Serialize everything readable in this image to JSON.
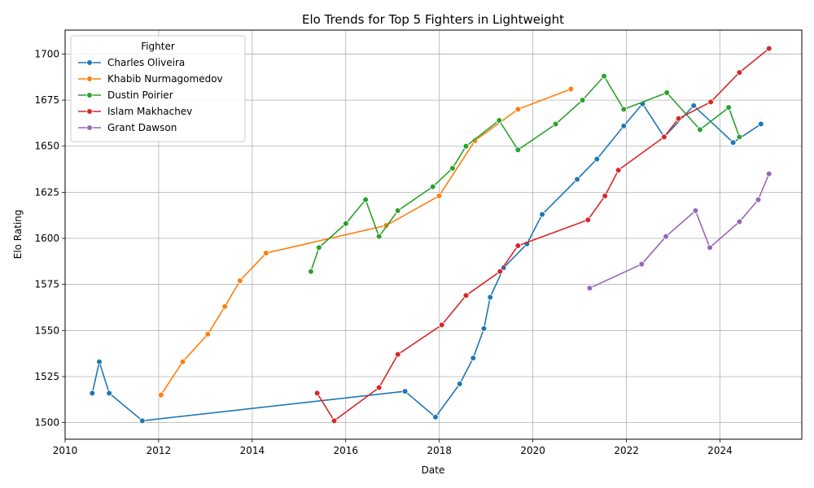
{
  "chart_data": {
    "type": "line",
    "title": "Elo Trends for Top 5 Fighters in Lightweight",
    "xlabel": "Date",
    "ylabel": "Elo Rating",
    "xlim": [
      "2010-01-01",
      "2025-10-01"
    ],
    "ylim": [
      1491,
      1713
    ],
    "xticks": [
      "2010",
      "2012",
      "2014",
      "2016",
      "2018",
      "2020",
      "2022",
      "2024"
    ],
    "yticks": [
      1500,
      1525,
      1550,
      1575,
      1600,
      1625,
      1650,
      1675,
      1700
    ],
    "grid": true,
    "legend": {
      "title": "Fighter",
      "position": "top-left"
    },
    "series": [
      {
        "name": "Charles Oliveira",
        "color": "#1f77b4",
        "points": [
          [
            "2010-08-01",
            1516
          ],
          [
            "2010-09-25",
            1533
          ],
          [
            "2010-12-11",
            1516
          ],
          [
            "2011-08-27",
            1501
          ],
          [
            "2017-04-08",
            1517
          ],
          [
            "2017-12-02",
            1503
          ],
          [
            "2018-06-09",
            1521
          ],
          [
            "2018-09-22",
            1535
          ],
          [
            "2018-12-15",
            1551
          ],
          [
            "2019-02-02",
            1568
          ],
          [
            "2019-05-18",
            1584
          ],
          [
            "2019-11-16",
            1597
          ],
          [
            "2020-03-14",
            1613
          ],
          [
            "2020-12-12",
            1632
          ],
          [
            "2021-05-15",
            1643
          ],
          [
            "2021-12-11",
            1661
          ],
          [
            "2022-05-07",
            1673
          ],
          [
            "2022-10-22",
            1655
          ],
          [
            "2023-06-10",
            1672
          ],
          [
            "2024-04-13",
            1652
          ],
          [
            "2024-11-16",
            1662
          ]
        ]
      },
      {
        "name": "Khabib Nurmagomedov",
        "color": "#ff7f0e",
        "points": [
          [
            "2012-01-20",
            1515
          ],
          [
            "2012-07-07",
            1533
          ],
          [
            "2013-01-19",
            1548
          ],
          [
            "2013-06-01",
            1563
          ],
          [
            "2013-09-28",
            1577
          ],
          [
            "2014-04-19",
            1592
          ],
          [
            "2016-11-12",
            1607
          ],
          [
            "2017-12-30",
            1623
          ],
          [
            "2018-10-06",
            1653
          ],
          [
            "2019-09-07",
            1670
          ],
          [
            "2020-10-24",
            1681
          ]
        ]
      },
      {
        "name": "Dustin Poirier",
        "color": "#2ca02c",
        "points": [
          [
            "2015-04-04",
            1582
          ],
          [
            "2015-06-06",
            1595
          ],
          [
            "2016-01-02",
            1608
          ],
          [
            "2016-06-04",
            1621
          ],
          [
            "2016-09-17",
            1601
          ],
          [
            "2017-02-11",
            1615
          ],
          [
            "2017-11-11",
            1628
          ],
          [
            "2018-04-14",
            1638
          ],
          [
            "2018-07-28",
            1650
          ],
          [
            "2019-04-13",
            1664
          ],
          [
            "2019-09-07",
            1648
          ],
          [
            "2020-06-27",
            1662
          ],
          [
            "2021-01-23",
            1675
          ],
          [
            "2021-07-10",
            1688
          ],
          [
            "2021-12-11",
            1670
          ],
          [
            "2022-11-12",
            1679
          ],
          [
            "2023-07-29",
            1659
          ],
          [
            "2024-03-09",
            1671
          ],
          [
            "2024-06-01",
            1655
          ]
        ]
      },
      {
        "name": "Islam Makhachev",
        "color": "#d62728",
        "points": [
          [
            "2015-05-23",
            1516
          ],
          [
            "2015-10-03",
            1501
          ],
          [
            "2016-09-17",
            1519
          ],
          [
            "2017-02-11",
            1537
          ],
          [
            "2018-01-20",
            1553
          ],
          [
            "2018-07-28",
            1569
          ],
          [
            "2019-04-20",
            1582
          ],
          [
            "2019-09-07",
            1596
          ],
          [
            "2021-03-06",
            1610
          ],
          [
            "2021-07-17",
            1623
          ],
          [
            "2021-10-30",
            1637
          ],
          [
            "2022-10-22",
            1655
          ],
          [
            "2023-02-12",
            1665
          ],
          [
            "2023-10-21",
            1674
          ],
          [
            "2024-06-01",
            1690
          ],
          [
            "2025-01-18",
            1703
          ]
        ]
      },
      {
        "name": "Grant Dawson",
        "color": "#9467bd",
        "points": [
          [
            "2021-03-20",
            1573
          ],
          [
            "2022-04-30",
            1586
          ],
          [
            "2022-11-05",
            1601
          ],
          [
            "2023-06-24",
            1615
          ],
          [
            "2023-10-14",
            1595
          ],
          [
            "2024-06-01",
            1609
          ],
          [
            "2024-10-26",
            1621
          ],
          [
            "2025-01-18",
            1635
          ]
        ]
      }
    ]
  }
}
